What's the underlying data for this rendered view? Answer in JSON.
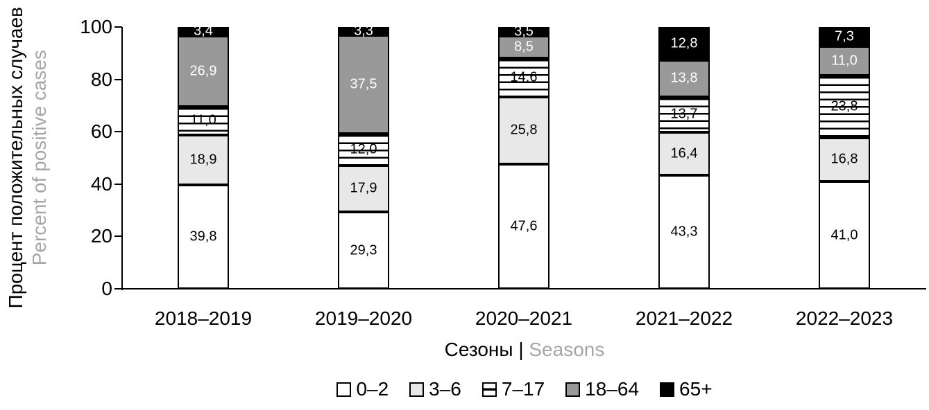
{
  "figure": {
    "y_axis_title_ru": "Процент положительных случаев",
    "y_axis_title_en": "Percent of positive cases",
    "x_axis_title_ru": "Сезоны",
    "x_axis_title_separator": "|",
    "x_axis_title_en": "Seasons",
    "colors": {
      "axis": "#000000",
      "muted_text": "#a6a6a6",
      "fill_white": "#ffffff",
      "fill_light_gray": "#e8e8e8",
      "fill_dark_gray": "#999999",
      "fill_black": "#000000"
    }
  },
  "chart_data": {
    "type": "bar",
    "stacked": true,
    "grid": false,
    "legend_position": "bottom",
    "decimal_separator": ",",
    "title": "",
    "xlabel": "Сезоны | Seasons",
    "ylabel": "Процент положительных случаев | Percent of positive cases",
    "ylim": [
      0,
      100
    ],
    "y_ticks": [
      0,
      20,
      40,
      60,
      80,
      100
    ],
    "categories": [
      "2018–2019",
      "2019–2020",
      "2020–2021",
      "2021–2022",
      "2022–2023"
    ],
    "series": [
      {
        "name": "0–2",
        "fill": "#ffffff",
        "pattern": "solid",
        "label_color": "#000000",
        "values": [
          39.8,
          29.3,
          47.6,
          43.3,
          41.0
        ]
      },
      {
        "name": "3–6",
        "fill": "#e8e8e8",
        "pattern": "solid",
        "label_color": "#000000",
        "values": [
          18.9,
          17.9,
          25.8,
          16.4,
          16.8
        ]
      },
      {
        "name": "7–17",
        "fill": "#ffffff",
        "pattern": "striped",
        "label_color": "#000000",
        "values": [
          11.0,
          12.0,
          14.6,
          13.7,
          23.8
        ]
      },
      {
        "name": "18–64",
        "fill": "#999999",
        "pattern": "solid",
        "label_color": "#ffffff",
        "values": [
          26.9,
          37.5,
          8.5,
          13.8,
          11.0
        ]
      },
      {
        "name": "65+",
        "fill": "#000000",
        "pattern": "solid",
        "label_color": "#ffffff",
        "values": [
          3.4,
          3.3,
          3.5,
          12.8,
          7.3
        ]
      }
    ]
  }
}
